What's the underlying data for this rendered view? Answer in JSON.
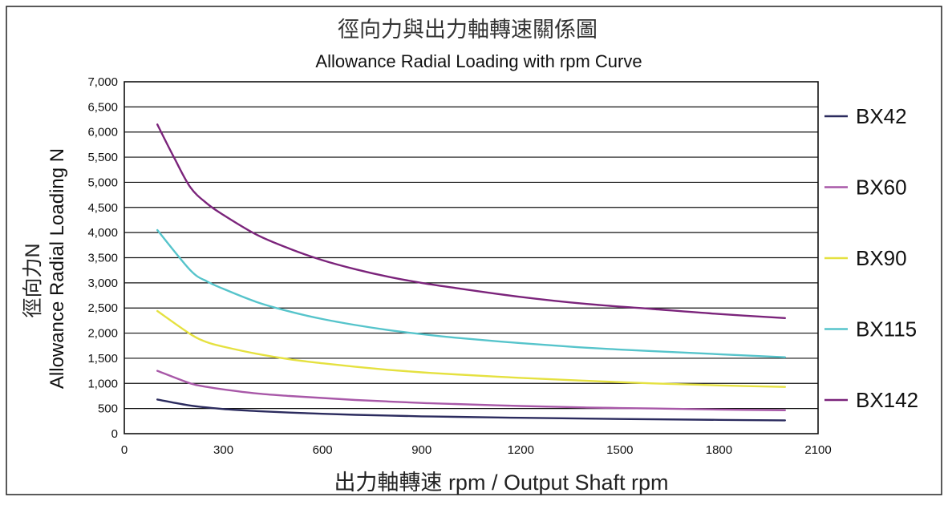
{
  "chart_data": {
    "type": "line",
    "title": "徑向力與出力軸轉速關係圖",
    "subtitle": "Allowance Radial Loading with rpm Curve",
    "xlabel": "出力軸轉速 rpm / Output Shaft rpm",
    "ylabel_cn": "徑向力N",
    "ylabel_en": "Allowance Radial Loading N",
    "xlim": [
      0,
      2100
    ],
    "ylim": [
      0,
      7000
    ],
    "xticks": [
      0,
      300,
      600,
      900,
      1200,
      1500,
      1800,
      2100
    ],
    "xtick_labels": [
      "0",
      "300",
      "600",
      "900",
      "1200",
      "1500",
      "1800",
      "2100"
    ],
    "yticks": [
      0,
      500,
      1000,
      1500,
      2000,
      2500,
      3000,
      3500,
      4000,
      4500,
      5000,
      5500,
      6000,
      6500,
      7000
    ],
    "ytick_labels": [
      "0",
      "500",
      "1,000",
      "1,500",
      "2,000",
      "2,500",
      "3,000",
      "3,500",
      "4,000",
      "4,500",
      "5,000",
      "5,500",
      "6,000",
      "6,500",
      "7,000"
    ],
    "grid": true,
    "legend_position": "right",
    "series": [
      {
        "name": "BX42",
        "color": "#2b2b5e",
        "x": [
          100,
          200,
          300,
          400,
          500,
          600,
          700,
          800,
          900,
          1000,
          1200,
          1400,
          1600,
          1800,
          2000
        ],
        "y": [
          680,
          560,
          490,
          450,
          420,
          395,
          375,
          360,
          345,
          335,
          315,
          300,
          285,
          275,
          265
        ]
      },
      {
        "name": "BX60",
        "color": "#a858a8",
        "x": [
          100,
          200,
          250,
          300,
          400,
          500,
          600,
          700,
          800,
          900,
          1000,
          1200,
          1400,
          1600,
          1800,
          2000
        ],
        "y": [
          1250,
          1000,
          930,
          880,
          800,
          750,
          710,
          670,
          640,
          610,
          590,
          550,
          520,
          500,
          480,
          465
        ]
      },
      {
        "name": "BX90",
        "color": "#e5e140",
        "x": [
          100,
          200,
          250,
          300,
          400,
          500,
          600,
          700,
          800,
          900,
          1000,
          1200,
          1400,
          1600,
          1800,
          2000
        ],
        "y": [
          2440,
          1980,
          1820,
          1730,
          1590,
          1480,
          1400,
          1330,
          1270,
          1220,
          1180,
          1110,
          1050,
          1000,
          960,
          930
        ]
      },
      {
        "name": "BX115",
        "color": "#56c4cb",
        "x": [
          100,
          200,
          250,
          300,
          400,
          500,
          600,
          700,
          800,
          900,
          1000,
          1200,
          1400,
          1600,
          1800,
          2000
        ],
        "y": [
          4050,
          3250,
          3030,
          2880,
          2620,
          2430,
          2280,
          2160,
          2060,
          1980,
          1910,
          1800,
          1710,
          1640,
          1580,
          1520
        ]
      },
      {
        "name": "BX142",
        "color": "#7b247b",
        "x": [
          100,
          150,
          200,
          250,
          300,
          400,
          500,
          600,
          700,
          800,
          900,
          1000,
          1200,
          1400,
          1600,
          1800,
          2000
        ],
        "y": [
          6150,
          5500,
          4900,
          4580,
          4350,
          3960,
          3680,
          3450,
          3270,
          3120,
          3000,
          2900,
          2720,
          2580,
          2480,
          2380,
          2300
        ]
      }
    ]
  }
}
